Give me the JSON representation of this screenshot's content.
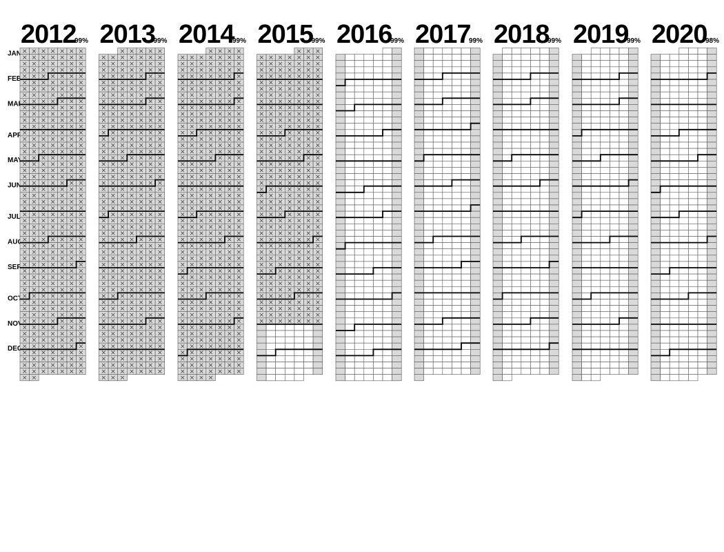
{
  "calendar": {
    "years": [
      {
        "year": "2012",
        "percent": "99%",
        "completed": "all"
      },
      {
        "year": "2013",
        "percent": "99%",
        "completed": "all"
      },
      {
        "year": "2014",
        "percent": "99%",
        "completed": "all"
      },
      {
        "year": "2015",
        "percent": "99%",
        "completed": "through 2015-10-31"
      },
      {
        "year": "2016",
        "percent": "99%",
        "completed": "none"
      },
      {
        "year": "2017",
        "percent": "99%",
        "completed": "none"
      },
      {
        "year": "2018",
        "percent": "99%",
        "completed": "none"
      },
      {
        "year": "2019",
        "percent": "99%",
        "completed": "none"
      },
      {
        "year": "2020",
        "percent": "98%",
        "completed": "none"
      }
    ],
    "months": [
      "JAN",
      "FEB",
      "MAR",
      "APR",
      "MAY",
      "JUN",
      "JUL",
      "AUG",
      "SEP",
      "OCT",
      "NOV",
      "DEC"
    ],
    "colors": {
      "weekend": "#d9d9d9",
      "weekday": "#ffffff",
      "line": "#000000"
    }
  }
}
